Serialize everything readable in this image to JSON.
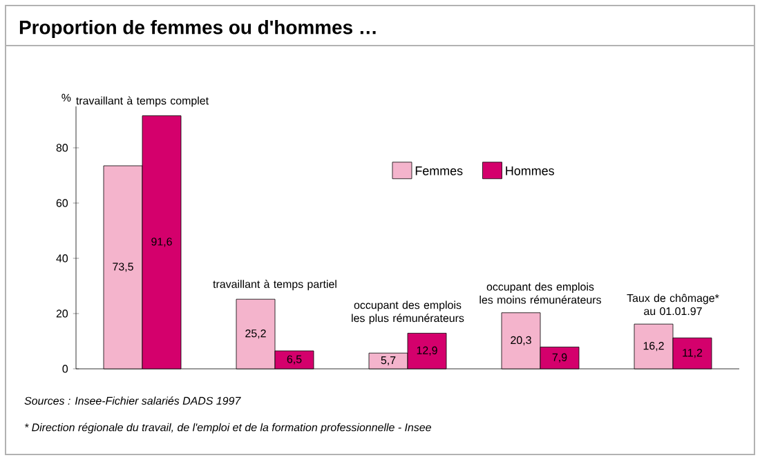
{
  "chart_data": {
    "type": "bar",
    "title": "Proportion de femmes ou d'hommes …",
    "ylabel": "%",
    "categories": [
      "travaillant à temps complet",
      "travaillant à temps partiel",
      "occupant des emplois les plus rémunérateurs",
      "occupant des emplois les moins rémunérateurs",
      "Taux de chômage* au 01.01.97"
    ],
    "series": [
      {
        "name": "Femmes",
        "color": "#f4b4cc",
        "values": [
          73.5,
          25.2,
          5.7,
          20.3,
          16.2
        ],
        "value_labels": [
          "73,5",
          "25,2",
          "5,7",
          "20,3",
          "16,2"
        ]
      },
      {
        "name": "Hommes",
        "color": "#d4006c",
        "values": [
          91.6,
          6.5,
          12.9,
          7.9,
          11.2
        ],
        "value_labels": [
          "91,6",
          "6,5",
          "12,9",
          "7,9",
          "11,2"
        ]
      }
    ],
    "ylim": [
      0,
      95
    ],
    "yticks": [
      0,
      20,
      40,
      60,
      80
    ],
    "legend": "top",
    "grid": false,
    "annotations": [
      "Sources : Insee-Fichier salariés DADS 1997",
      "* Direction régionale du travail, de l'emploi et de la formation professionnelle - Insee"
    ]
  }
}
